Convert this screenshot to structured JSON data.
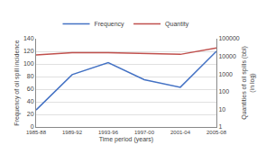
{
  "chart_data": {
    "type": "line",
    "categories": [
      "1985-88",
      "1989-92",
      "1993-96",
      "1997-00",
      "2001-04",
      "2005-08"
    ],
    "series": [
      {
        "name": "Frequency",
        "color": "#4472C4",
        "values": [
          27,
          83,
          102,
          75,
          63,
          120
        ]
      },
      {
        "name": "Quantity",
        "color": "#C0504D",
        "axis": "y2",
        "values": [
          12000,
          16000,
          16000,
          14000,
          13000,
          30000
        ]
      }
    ],
    "xlabel": "Time period (years)",
    "ylabel": "Frequency of oil spill incidence",
    "y2label": "Quantities of oil spills (bbl)\n(in log)",
    "ylim": [
      0,
      140
    ],
    "yticks": [
      0,
      20,
      40,
      60,
      80,
      100,
      120,
      140
    ],
    "y2lim": [
      1,
      100000
    ],
    "y2ticks": [
      1,
      10,
      100,
      1000,
      10000,
      100000
    ],
    "log": "y2",
    "grid": true,
    "legend": "top"
  }
}
